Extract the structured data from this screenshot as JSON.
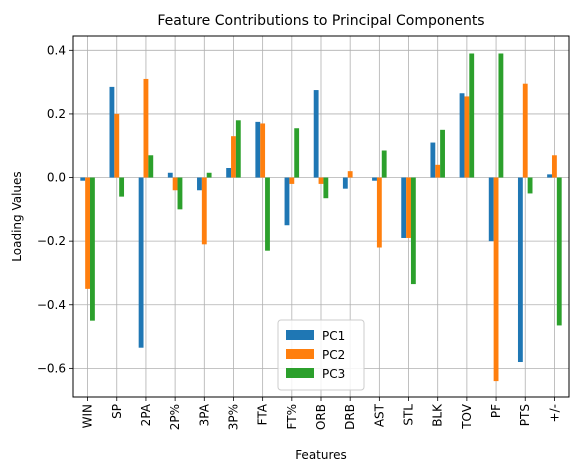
{
  "chart_data": {
    "type": "bar",
    "title": "Feature Contributions to Principal Components",
    "xlabel": "Features",
    "ylabel": "Loading Values",
    "categories": [
      "WIN",
      "SP",
      "2PA",
      "2P%",
      "3PA",
      "3P%",
      "FTA",
      "FT%",
      "ORB",
      "DRB",
      "AST",
      "STL",
      "BLK",
      "TOV",
      "PF",
      "PTS",
      "+/-"
    ],
    "series": [
      {
        "name": "PC1",
        "color": "#1f77b4",
        "values": [
          -0.01,
          0.285,
          -0.535,
          0.015,
          -0.04,
          0.03,
          0.175,
          -0.15,
          0.275,
          -0.035,
          -0.01,
          -0.19,
          0.11,
          0.265,
          -0.2,
          -0.58,
          0.01
        ]
      },
      {
        "name": "PC2",
        "color": "#ff7f0e",
        "values": [
          -0.35,
          0.2,
          0.31,
          -0.04,
          -0.21,
          0.13,
          0.17,
          -0.02,
          -0.02,
          0.02,
          -0.22,
          -0.19,
          0.04,
          0.255,
          -0.64,
          0.295,
          0.07
        ]
      },
      {
        "name": "PC3",
        "color": "#2ca02c",
        "values": [
          -0.45,
          -0.06,
          0.07,
          -0.1,
          0.015,
          0.18,
          -0.23,
          0.155,
          -0.065,
          0.0,
          0.085,
          -0.335,
          0.15,
          0.39,
          0.39,
          -0.05,
          -0.465
        ]
      }
    ],
    "ylim": [
      -0.69,
      0.445
    ],
    "yticks": [
      0.4,
      0.2,
      0.0,
      -0.2,
      -0.4,
      -0.6
    ],
    "ytick_labels": [
      "0.4",
      "0.2",
      "0.0",
      "−0.2",
      "−0.4",
      "−0.6"
    ],
    "grid": true,
    "legend_position": "lower-center"
  }
}
